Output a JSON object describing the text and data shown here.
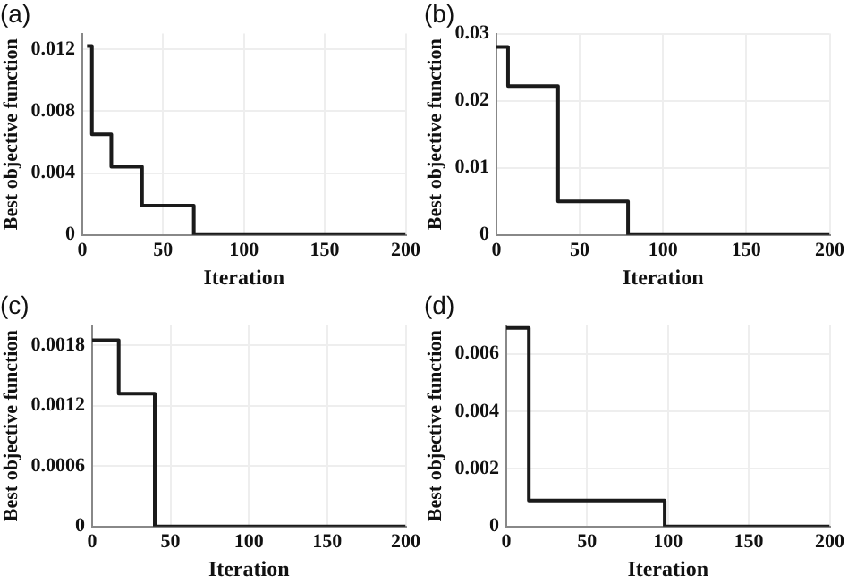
{
  "chart_data": [
    {
      "type": "step",
      "title": "(a)",
      "xlabel": "Iteration",
      "ylabel": "Best objective function",
      "x": [
        3,
        6,
        18,
        37,
        69,
        200
      ],
      "series": [
        {
          "color": "#1a1a1a",
          "values": [
            0.0122,
            0.0065,
            0.0044,
            0.0019,
            0,
            0
          ]
        }
      ],
      "xlim": [
        0,
        200
      ],
      "xticks": [
        0,
        50,
        100,
        150,
        200
      ],
      "ylim": [
        0,
        0.013
      ],
      "yticks": [
        0,
        0.004,
        0.008,
        0.012
      ],
      "grid": true,
      "legend": false,
      "marker": "none"
    },
    {
      "type": "step",
      "title": "(b)",
      "xlabel": "Iteration",
      "ylabel": "Best objective function",
      "x": [
        0,
        7,
        37,
        79,
        200
      ],
      "series": [
        {
          "color": "#1a1a1a",
          "values": [
            0.028,
            0.0222,
            0.005,
            0,
            0
          ]
        }
      ],
      "xlim": [
        0,
        200
      ],
      "xticks": [
        0,
        50,
        100,
        150,
        200
      ],
      "ylim": [
        0,
        0.03
      ],
      "yticks": [
        0,
        0.01,
        0.02,
        0.03
      ],
      "grid": true,
      "legend": false,
      "marker": "none"
    },
    {
      "type": "step",
      "title": "(c)",
      "xlabel": "Iteration",
      "ylabel": "Best objective function",
      "x": [
        0,
        17,
        40,
        200
      ],
      "series": [
        {
          "color": "#1a1a1a",
          "values": [
            0.00185,
            0.00132,
            0,
            0
          ]
        }
      ],
      "xlim": [
        0,
        200
      ],
      "xticks": [
        0,
        50,
        100,
        150,
        200
      ],
      "ylim": [
        0,
        0.002
      ],
      "yticks": [
        0,
        0.0006,
        0.0012,
        0.0018
      ],
      "grid": true,
      "legend": false,
      "marker": "none"
    },
    {
      "type": "step",
      "title": "(d)",
      "xlabel": "Iteration",
      "ylabel": "Best objective function",
      "x": [
        0,
        14,
        98,
        200
      ],
      "series": [
        {
          "color": "#1a1a1a",
          "values": [
            0.0069,
            0.0009,
            0,
            0
          ]
        }
      ],
      "xlim": [
        0,
        200
      ],
      "xticks": [
        0,
        50,
        100,
        150,
        200
      ],
      "ylim": [
        0,
        0.007
      ],
      "yticks": [
        0,
        0.002,
        0.004,
        0.006
      ],
      "grid": true,
      "legend": false,
      "marker": "none"
    }
  ]
}
